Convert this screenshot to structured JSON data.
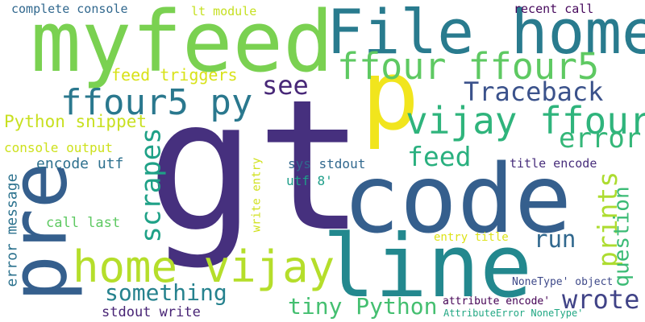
{
  "word_cloud": {
    "words": [
      {
        "text": "gt",
        "color": "#46307e"
      },
      {
        "text": "code",
        "color": "#355f8d"
      },
      {
        "text": "line",
        "color": "#23888e"
      },
      {
        "text": "pre",
        "color": "#355f8d"
      },
      {
        "text": "myfeed",
        "color": "#7ad151"
      },
      {
        "text": "File home",
        "color": "#297b8e"
      },
      {
        "text": "p",
        "color": "#f1e51d"
      },
      {
        "text": "home vijay",
        "color": "#b5de2b"
      },
      {
        "text": "vijay ffour",
        "color": "#2fb47c"
      },
      {
        "text": "ffour ffour5",
        "color": "#5ec962"
      },
      {
        "text": "ffour5 py",
        "color": "#2a788e"
      },
      {
        "text": "Traceback",
        "color": "#3b528b"
      },
      {
        "text": "see",
        "color": "#482878"
      },
      {
        "text": "feed",
        "color": "#2ab07f"
      },
      {
        "text": "error",
        "color": "#35b779"
      },
      {
        "text": "scrapes",
        "color": "#1fa187"
      },
      {
        "text": "prints",
        "color": "#addc30"
      },
      {
        "text": "question",
        "color": "#3bbb75"
      },
      {
        "text": "run",
        "color": "#31688e"
      },
      {
        "text": "wrote",
        "color": "#404387"
      },
      {
        "text": "something",
        "color": "#26828e"
      },
      {
        "text": "tiny Python",
        "color": "#44bf70"
      },
      {
        "text": "Python snippet",
        "color": "#c8e020"
      },
      {
        "text": "feed triggers",
        "color": "#d8e219"
      },
      {
        "text": "error message",
        "color": "#2c728e"
      },
      {
        "text": "console output",
        "color": "#cde11d"
      },
      {
        "text": "encode utf",
        "color": "#2d708e"
      },
      {
        "text": "call last",
        "color": "#5ec962"
      },
      {
        "text": "stdout write",
        "color": "#482475"
      },
      {
        "text": "complete console",
        "color": "#31688e"
      },
      {
        "text": "lt module",
        "color": "#c5e021"
      },
      {
        "text": "recent call",
        "color": "#46085c"
      },
      {
        "text": "sys stdout",
        "color": "#31688e"
      },
      {
        "text": "utf 8'",
        "color": "#1f9e89"
      },
      {
        "text": "write entry",
        "color": "#d0e11c"
      },
      {
        "text": "title encode",
        "color": "#472d7b"
      },
      {
        "text": "entry title",
        "color": "#dde318"
      },
      {
        "text": "NoneType' object",
        "color": "#3e4989"
      },
      {
        "text": "attribute encode'",
        "color": "#440154"
      },
      {
        "text": "AttributeError NoneType'",
        "color": "#22a884"
      }
    ]
  }
}
